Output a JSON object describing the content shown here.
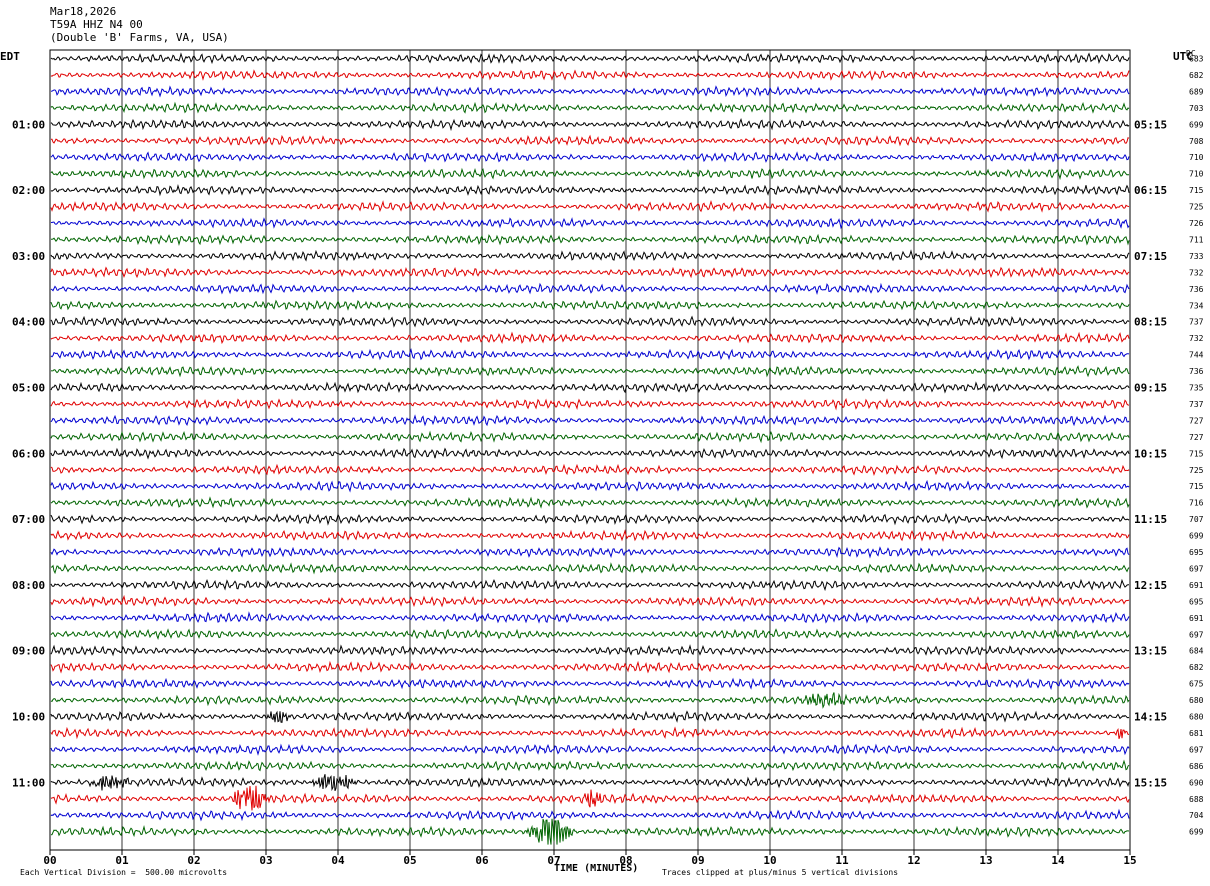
{
  "header": {
    "date": "Mar18,2026",
    "station": "T59A HHZ N4 00",
    "location": "(Double 'B' Farms, VA, USA)"
  },
  "labels": {
    "left_tz": "EDT",
    "right_tz": "UTC",
    "dc": "DC",
    "xlabel": "TIME (MINUTES)",
    "scale_note": "Each Vertical Division =  500.00 microvolts",
    "clip_note": "Traces clipped at plus/minus 5 vertical divisions"
  },
  "chart_data": {
    "type": "line",
    "x_ticks": [
      "00",
      "01",
      "02",
      "03",
      "04",
      "05",
      "06",
      "07",
      "08",
      "09",
      "10",
      "11",
      "12",
      "13",
      "14",
      "15"
    ],
    "xlim": [
      0,
      15
    ],
    "grid": "vertical lines at each minute",
    "trace_colors": [
      "#000000",
      "#e00000",
      "#0000d0",
      "#006400"
    ],
    "left_hours": [
      "01:00",
      "02:00",
      "03:00",
      "04:00",
      "05:00",
      "06:00",
      "07:00",
      "08:00",
      "09:00",
      "10:00",
      "11:00"
    ],
    "right_hours": [
      "05:15",
      "06:15",
      "07:15",
      "08:15",
      "09:15",
      "10:15",
      "11:15",
      "12:15",
      "13:15",
      "14:15",
      "15:15"
    ],
    "dc_offsets": [
      "683",
      "682",
      "689",
      "703",
      "699",
      "708",
      "710",
      "710",
      "715",
      "725",
      "726",
      "711",
      "733",
      "732",
      "736",
      "734",
      "737",
      "732",
      "744",
      "736",
      "735",
      "737",
      "727",
      "727",
      "715",
      "725",
      "715",
      "716",
      "707",
      "699",
      "695",
      "697",
      "691",
      "695",
      "691",
      "697",
      "684",
      "682",
      "675",
      "680",
      "680",
      "681",
      "697",
      "686",
      "690",
      "688",
      "704",
      "699"
    ],
    "events": [
      {
        "row": 39,
        "start_min": 10.4,
        "end_min": 11.5,
        "amp": 1.3
      },
      {
        "row": 40,
        "start_min": 3.0,
        "end_min": 3.5,
        "amp": 1.3
      },
      {
        "row": 41,
        "start_min": 14.8,
        "end_min": 15.0,
        "amp": 1.8
      },
      {
        "row": 44,
        "start_min": 0.5,
        "end_min": 1.4,
        "amp": 1.6
      },
      {
        "row": 44,
        "start_min": 3.6,
        "end_min": 4.6,
        "amp": 1.8
      },
      {
        "row": 45,
        "start_min": 2.5,
        "end_min": 3.3,
        "amp": 3.0
      },
      {
        "row": 45,
        "start_min": 7.4,
        "end_min": 7.8,
        "amp": 1.6
      },
      {
        "row": 47,
        "start_min": 6.6,
        "end_min": 7.6,
        "amp": 3.5
      }
    ]
  }
}
